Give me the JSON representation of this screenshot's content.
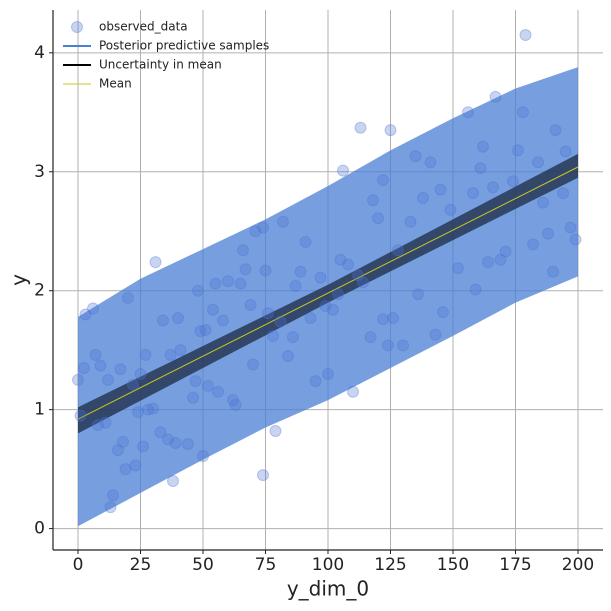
{
  "chart_data": {
    "type": "scatter",
    "xlabel": "y_dim_0",
    "ylabel": "y",
    "xlim": [
      -10,
      210
    ],
    "ylim": [
      -0.18,
      4.36
    ],
    "xticks": [
      0,
      25,
      50,
      75,
      100,
      125,
      150,
      175,
      200
    ],
    "yticks": [
      0,
      1,
      2,
      3,
      4
    ],
    "grid": true,
    "legend": "upper left",
    "series": [
      {
        "name": "observed_data",
        "kind": "scatter",
        "color": "#4c72d0",
        "x": [
          0,
          1,
          2.4,
          3,
          6,
          7,
          8,
          9,
          11,
          12,
          13,
          14,
          16,
          17,
          18,
          19,
          20,
          22,
          23,
          24,
          25,
          26,
          27,
          28,
          30,
          31,
          33,
          34,
          36,
          37,
          38,
          39,
          40,
          41,
          44,
          46,
          47,
          48,
          49,
          50,
          51,
          52,
          54,
          55,
          56,
          58,
          60,
          62,
          63,
          65,
          66,
          67,
          69,
          70,
          71,
          74,
          74,
          75,
          76,
          78,
          79,
          81,
          82,
          84,
          86,
          87,
          89,
          91,
          93,
          95,
          97,
          99,
          100,
          102,
          104,
          105,
          106,
          108,
          110,
          112,
          113,
          114,
          117,
          118,
          120,
          122,
          122,
          124,
          125,
          126,
          128,
          130,
          133,
          135,
          136,
          138,
          141,
          143,
          145,
          146,
          149,
          152,
          156,
          158,
          159,
          161,
          162,
          164,
          166,
          167,
          169,
          171,
          174,
          176,
          178,
          179,
          182,
          184,
          186,
          188,
          190,
          191,
          194,
          195,
          197,
          199
        ],
        "values": [
          1.25,
          0.95,
          1.35,
          1.8,
          1.85,
          1.46,
          0.87,
          1.37,
          0.89,
          1.25,
          0.18,
          0.28,
          0.66,
          1.34,
          0.73,
          0.5,
          1.94,
          1.21,
          0.53,
          0.98,
          1.3,
          0.69,
          1.46,
          1.0,
          1.01,
          2.24,
          0.81,
          1.75,
          0.75,
          1.46,
          0.4,
          0.72,
          1.77,
          1.5,
          0.71,
          1.1,
          1.24,
          2.0,
          1.66,
          0.61,
          1.67,
          1.2,
          1.84,
          2.06,
          1.15,
          1.75,
          2.08,
          1.08,
          1.04,
          2.06,
          2.34,
          2.18,
          1.88,
          1.38,
          2.5,
          2.53,
          0.45,
          2.17,
          1.81,
          1.62,
          0.82,
          1.74,
          2.58,
          1.45,
          1.61,
          2.04,
          2.16,
          2.41,
          1.77,
          1.24,
          2.11,
          1.87,
          1.3,
          1.84,
          1.97,
          2.26,
          3.01,
          2.22,
          1.15,
          2.13,
          3.37,
          2.07,
          1.61,
          2.76,
          2.61,
          1.76,
          2.93,
          1.54,
          3.35,
          1.77,
          2.34,
          1.54,
          2.58,
          3.13,
          1.97,
          2.78,
          3.08,
          1.63,
          2.85,
          1.82,
          2.68,
          2.19,
          3.5,
          2.82,
          2.01,
          3.03,
          3.21,
          2.24,
          2.87,
          3.63,
          2.26,
          2.33,
          2.92,
          3.18,
          3.5,
          4.15,
          2.39,
          3.08,
          2.74,
          2.48,
          2.16,
          3.35,
          2.82,
          3.17,
          2.53,
          2.43
        ]
      },
      {
        "name": "Posterior predictive samples",
        "kind": "band",
        "color": "#4a7fd6",
        "x": [
          0,
          25,
          50,
          75,
          100,
          125,
          150,
          175,
          200
        ],
        "lower": [
          0.02,
          0.3,
          0.58,
          0.85,
          1.08,
          1.35,
          1.62,
          1.9,
          2.12
        ],
        "upper": [
          1.78,
          2.1,
          2.35,
          2.6,
          2.88,
          3.18,
          3.45,
          3.7,
          3.88
        ]
      },
      {
        "name": "Uncertainty in mean",
        "kind": "band",
        "color": "#1c2a44",
        "x": [
          0,
          100,
          200
        ],
        "lower": [
          0.8,
          1.9,
          2.95
        ],
        "upper": [
          1.02,
          2.05,
          3.15
        ]
      },
      {
        "name": "Mean",
        "kind": "line",
        "color": "#c8c820",
        "x": [
          0,
          200
        ],
        "values": [
          0.92,
          3.04
        ]
      }
    ]
  }
}
